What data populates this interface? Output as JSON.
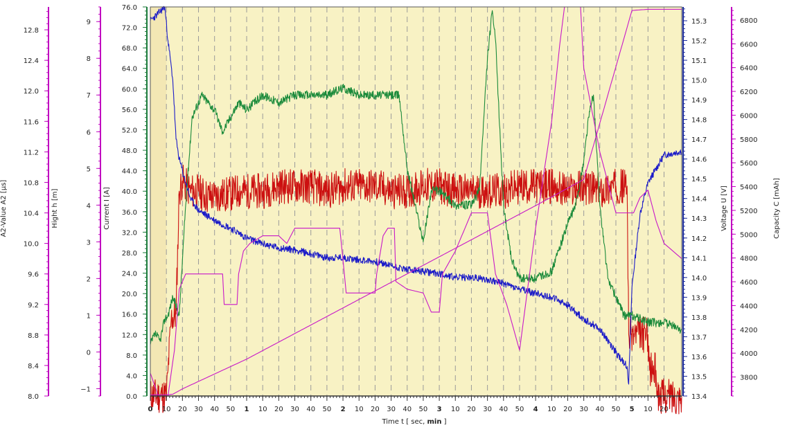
{
  "chart_data": {
    "type": "line",
    "plot_background": "#f8f2c4",
    "initial_shaded_background": "#f3e7b4",
    "grid": "vertical dashed",
    "x_axis": {
      "label": "Time   t   [ sec, min ]",
      "label_prefix": "Time   t   [ sec, ",
      "label_bold": "min",
      "label_suffix": " ]",
      "range": [
        0,
        331
      ],
      "ticks": [
        {
          "x": 0,
          "label": "0",
          "major": true
        },
        {
          "x": 10,
          "label": "10"
        },
        {
          "x": 20,
          "label": "20"
        },
        {
          "x": 30,
          "label": "30"
        },
        {
          "x": 40,
          "label": "40"
        },
        {
          "x": 50,
          "label": "50"
        },
        {
          "x": 60,
          "label": "1",
          "major": true
        },
        {
          "x": 70,
          "label": "10"
        },
        {
          "x": 80,
          "label": "20"
        },
        {
          "x": 90,
          "label": "30"
        },
        {
          "x": 100,
          "label": "40"
        },
        {
          "x": 110,
          "label": "50"
        },
        {
          "x": 120,
          "label": "2",
          "major": true
        },
        {
          "x": 130,
          "label": "10"
        },
        {
          "x": 140,
          "label": "20"
        },
        {
          "x": 150,
          "label": "30"
        },
        {
          "x": 160,
          "label": "40"
        },
        {
          "x": 170,
          "label": "50"
        },
        {
          "x": 180,
          "label": "3",
          "major": true
        },
        {
          "x": 190,
          "label": "10"
        },
        {
          "x": 200,
          "label": "20"
        },
        {
          "x": 210,
          "label": "30"
        },
        {
          "x": 220,
          "label": "40"
        },
        {
          "x": 230,
          "label": "50"
        },
        {
          "x": 240,
          "label": "4",
          "major": true
        },
        {
          "x": 250,
          "label": "10"
        },
        {
          "x": 260,
          "label": "20"
        },
        {
          "x": 270,
          "label": "30"
        },
        {
          "x": 280,
          "label": "40"
        },
        {
          "x": 290,
          "label": "50"
        },
        {
          "x": 300,
          "label": "5",
          "major": true
        },
        {
          "x": 310,
          "label": "10"
        },
        {
          "x": 320,
          "label": "20"
        }
      ]
    },
    "y_axes": [
      {
        "id": "a2",
        "label": "A2-Value   A2   [µs]",
        "color": "#c000c0",
        "range": [
          8.0,
          13.1
        ],
        "ticks": [
          8.0,
          8.4,
          8.8,
          9.2,
          9.6,
          10.0,
          10.4,
          10.8,
          11.2,
          11.6,
          12.0,
          12.4,
          12.8
        ],
        "tick_labels": [
          "8.0",
          "8.4",
          "8.8",
          "9.2",
          "9.6",
          "10.0",
          "10.4",
          "10.8",
          "11.2",
          "11.6",
          "12.0",
          "12.4",
          "12.8"
        ]
      },
      {
        "id": "hight",
        "label": "Hight   h   [m]",
        "color": "#c000c0",
        "range": [
          -1.2,
          9.4
        ],
        "ticks": [
          -1,
          0,
          1,
          2,
          3,
          4,
          5,
          6,
          7,
          8,
          9
        ],
        "tick_labels": [
          "−1",
          "0",
          "1",
          "2",
          "3",
          "4",
          "5",
          "6",
          "7",
          "8",
          "9"
        ]
      },
      {
        "id": "current",
        "label": "Current   I   [A]",
        "color": "#1a7a3a",
        "range": [
          0,
          76
        ],
        "ticks": [
          0,
          4,
          8,
          12,
          16,
          20,
          24,
          28,
          32,
          36,
          40,
          44,
          48,
          52,
          56,
          60,
          64,
          68,
          72,
          76
        ],
        "tick_labels": [
          "0.0",
          "4.0",
          "8.0",
          "12.0",
          "16.0",
          "20.0",
          "24.0",
          "28.0",
          "32.0",
          "36.0",
          "40.0",
          "44.0",
          "48.0",
          "52.0",
          "56.0",
          "60.0",
          "64.0",
          "68.0",
          "72.0",
          "76.0"
        ]
      },
      {
        "id": "voltage",
        "label": "Voltage   U   [V]",
        "color": "#1a2a9a",
        "range": [
          13.4,
          15.37
        ],
        "ticks": [
          13.4,
          13.5,
          13.6,
          13.7,
          13.8,
          13.9,
          14.0,
          14.1,
          14.2,
          14.3,
          14.4,
          14.5,
          14.6,
          14.7,
          14.8,
          14.9,
          15.0,
          15.1,
          15.2,
          15.3
        ],
        "tick_labels": [
          "13.4",
          "13.5",
          "13.6",
          "13.7",
          "13.8",
          "13.9",
          "14.0",
          "14.1",
          "14.2",
          "14.3",
          "14.4",
          "14.5",
          "14.6",
          "14.7",
          "14.8",
          "14.9",
          "15.0",
          "15.1",
          "15.2",
          "15.3"
        ]
      },
      {
        "id": "capacity",
        "label": "Capacity   C   [mAh]",
        "color": "#c000c0",
        "range": [
          3640,
          6910
        ],
        "ticks": [
          3800,
          4000,
          4200,
          4400,
          4600,
          4800,
          5000,
          5200,
          5400,
          5600,
          5800,
          6000,
          6200,
          6400,
          6600,
          6800
        ],
        "tick_labels": [
          "3800",
          "4000",
          "4200",
          "4400",
          "4600",
          "4800",
          "5000",
          "5200",
          "5400",
          "5600",
          "5800",
          "6000",
          "6200",
          "6400",
          "6600",
          "6800"
        ]
      }
    ],
    "series": [
      {
        "axis": "current",
        "color": "#cc1010",
        "noise": 3.5,
        "seed": 11,
        "points": [
          [
            0,
            0
          ],
          [
            10,
            0
          ],
          [
            11,
            5
          ],
          [
            13,
            15
          ],
          [
            16,
            16
          ],
          [
            18,
            40
          ],
          [
            20,
            42
          ],
          [
            25,
            40
          ],
          [
            30,
            40
          ],
          [
            35,
            39
          ],
          [
            40,
            39
          ],
          [
            50,
            39.5
          ],
          [
            55,
            40
          ],
          [
            60,
            40
          ],
          [
            70,
            40
          ],
          [
            80,
            41
          ],
          [
            90,
            41
          ],
          [
            100,
            41
          ],
          [
            110,
            40
          ],
          [
            120,
            41
          ],
          [
            130,
            41
          ],
          [
            140,
            41
          ],
          [
            150,
            40
          ],
          [
            160,
            40
          ],
          [
            170,
            41
          ],
          [
            180,
            41
          ],
          [
            190,
            40
          ],
          [
            200,
            40
          ],
          [
            210,
            40
          ],
          [
            220,
            40
          ],
          [
            230,
            41
          ],
          [
            240,
            41
          ],
          [
            250,
            41
          ],
          [
            260,
            40
          ],
          [
            270,
            41
          ],
          [
            280,
            40
          ],
          [
            290,
            41
          ],
          [
            297,
            41
          ],
          [
            298,
            12
          ],
          [
            310,
            12
          ],
          [
            311,
            5
          ],
          [
            315,
            5
          ],
          [
            316,
            0
          ],
          [
            331,
            0
          ]
        ]
      },
      {
        "axis": "voltage",
        "color": "#1b1bc8",
        "noise": 0.018,
        "seed": 23,
        "points": [
          [
            0,
            15.3
          ],
          [
            4,
            15.33
          ],
          [
            9,
            15.37
          ],
          [
            11,
            15.2
          ],
          [
            14,
            15.0
          ],
          [
            16,
            14.7
          ],
          [
            18,
            14.6
          ],
          [
            22,
            14.48
          ],
          [
            25,
            14.4
          ],
          [
            30,
            14.34
          ],
          [
            40,
            14.29
          ],
          [
            50,
            14.25
          ],
          [
            60,
            14.2
          ],
          [
            70,
            14.17
          ],
          [
            80,
            14.15
          ],
          [
            90,
            14.14
          ],
          [
            100,
            14.12
          ],
          [
            110,
            14.1
          ],
          [
            120,
            14.1
          ],
          [
            130,
            14.09
          ],
          [
            140,
            14.08
          ],
          [
            150,
            14.06
          ],
          [
            160,
            14.04
          ],
          [
            170,
            14.03
          ],
          [
            180,
            14.02
          ],
          [
            190,
            14.0
          ],
          [
            200,
            14.0
          ],
          [
            210,
            13.99
          ],
          [
            220,
            13.97
          ],
          [
            230,
            13.94
          ],
          [
            240,
            13.92
          ],
          [
            250,
            13.9
          ],
          [
            260,
            13.86
          ],
          [
            270,
            13.79
          ],
          [
            280,
            13.74
          ],
          [
            290,
            13.62
          ],
          [
            297,
            13.55
          ],
          [
            298,
            13.46
          ],
          [
            300,
            13.95
          ],
          [
            305,
            14.32
          ],
          [
            310,
            14.48
          ],
          [
            320,
            14.62
          ],
          [
            331,
            14.64
          ]
        ]
      },
      {
        "axis": "hight",
        "color": "#1a8a3a",
        "noise": 0.12,
        "seed": 37,
        "points": [
          [
            0,
            0.2
          ],
          [
            3,
            0.5
          ],
          [
            6,
            0.3
          ],
          [
            9,
            0.9
          ],
          [
            11,
            1.0
          ],
          [
            14,
            1.5
          ],
          [
            18,
            1.0
          ],
          [
            22,
            4.0
          ],
          [
            26,
            6.4
          ],
          [
            32,
            7.0
          ],
          [
            40,
            6.6
          ],
          [
            45,
            6.0
          ],
          [
            55,
            6.8
          ],
          [
            60,
            6.6
          ],
          [
            70,
            7.0
          ],
          [
            80,
            6.8
          ],
          [
            90,
            7.0
          ],
          [
            100,
            7.0
          ],
          [
            110,
            7.0
          ],
          [
            120,
            7.2
          ],
          [
            130,
            7.0
          ],
          [
            140,
            7.0
          ],
          [
            150,
            7.0
          ],
          [
            155,
            7.0
          ],
          [
            160,
            5.0
          ],
          [
            165,
            4.0
          ],
          [
            170,
            3.0
          ],
          [
            175,
            4.4
          ],
          [
            180,
            4.4
          ],
          [
            190,
            4.0
          ],
          [
            200,
            4.0
          ],
          [
            205,
            4.4
          ],
          [
            210,
            8.0
          ],
          [
            213,
            9.3
          ],
          [
            215,
            8.5
          ],
          [
            220,
            4.0
          ],
          [
            225,
            2.5
          ],
          [
            230,
            2.0
          ],
          [
            240,
            2.0
          ],
          [
            250,
            2.2
          ],
          [
            260,
            3.5
          ],
          [
            265,
            4.0
          ],
          [
            270,
            5.2
          ],
          [
            273,
            6.4
          ],
          [
            276,
            7.0
          ],
          [
            280,
            4.0
          ],
          [
            285,
            2.0
          ],
          [
            290,
            1.5
          ],
          [
            295,
            1.0
          ],
          [
            300,
            1.0
          ],
          [
            310,
            0.8
          ],
          [
            320,
            0.8
          ],
          [
            331,
            0.6
          ]
        ]
      },
      {
        "axis": "a2",
        "color": "#c818c8",
        "noise": 0,
        "seed": 1,
        "points": [
          [
            0,
            8.3
          ],
          [
            5,
            8.0
          ],
          [
            8,
            8.0
          ],
          [
            11,
            8.0
          ],
          [
            15,
            8.6
          ],
          [
            18,
            9.4
          ],
          [
            22,
            9.6
          ],
          [
            45,
            9.6
          ],
          [
            46,
            9.2
          ],
          [
            54,
            9.2
          ],
          [
            55,
            9.6
          ],
          [
            58,
            9.9
          ],
          [
            62,
            10.0
          ],
          [
            70,
            10.1
          ],
          [
            80,
            10.1
          ],
          [
            85,
            10.0
          ],
          [
            90,
            10.2
          ],
          [
            118,
            10.2
          ],
          [
            119,
            10.0
          ],
          [
            122,
            9.35
          ],
          [
            140,
            9.35
          ],
          [
            141,
            9.6
          ],
          [
            145,
            10.1
          ],
          [
            148,
            10.2
          ],
          [
            152,
            10.2
          ],
          [
            153,
            9.5
          ],
          [
            160,
            9.4
          ],
          [
            170,
            9.35
          ],
          [
            175,
            9.1
          ],
          [
            180,
            9.1
          ],
          [
            182,
            9.6
          ],
          [
            190,
            9.9
          ],
          [
            200,
            10.4
          ],
          [
            210,
            10.4
          ],
          [
            215,
            9.6
          ],
          [
            222,
            9.2
          ],
          [
            230,
            8.6
          ],
          [
            240,
            10.2
          ],
          [
            250,
            11.6
          ],
          [
            255,
            12.6
          ],
          [
            258,
            13.1
          ],
          [
            268,
            13.1
          ],
          [
            270,
            12.3
          ],
          [
            280,
            11.2
          ],
          [
            290,
            10.4
          ],
          [
            300,
            10.4
          ],
          [
            301,
            10.4
          ],
          [
            305,
            10.6
          ],
          [
            310,
            10.7
          ],
          [
            315,
            10.3
          ],
          [
            320,
            10.0
          ],
          [
            331,
            9.8
          ]
        ]
      },
      {
        "axis": "capacity",
        "color": "#c818c8",
        "noise": 0,
        "seed": 2,
        "points": [
          [
            0,
            3650
          ],
          [
            10,
            3650
          ],
          [
            14,
            3655
          ],
          [
            20,
            3700
          ],
          [
            60,
            3950
          ],
          [
            120,
            4380
          ],
          [
            180,
            4810
          ],
          [
            240,
            5240
          ],
          [
            270,
            5460
          ],
          [
            300,
            6880
          ],
          [
            310,
            6890
          ],
          [
            331,
            6890
          ]
        ]
      }
    ]
  }
}
